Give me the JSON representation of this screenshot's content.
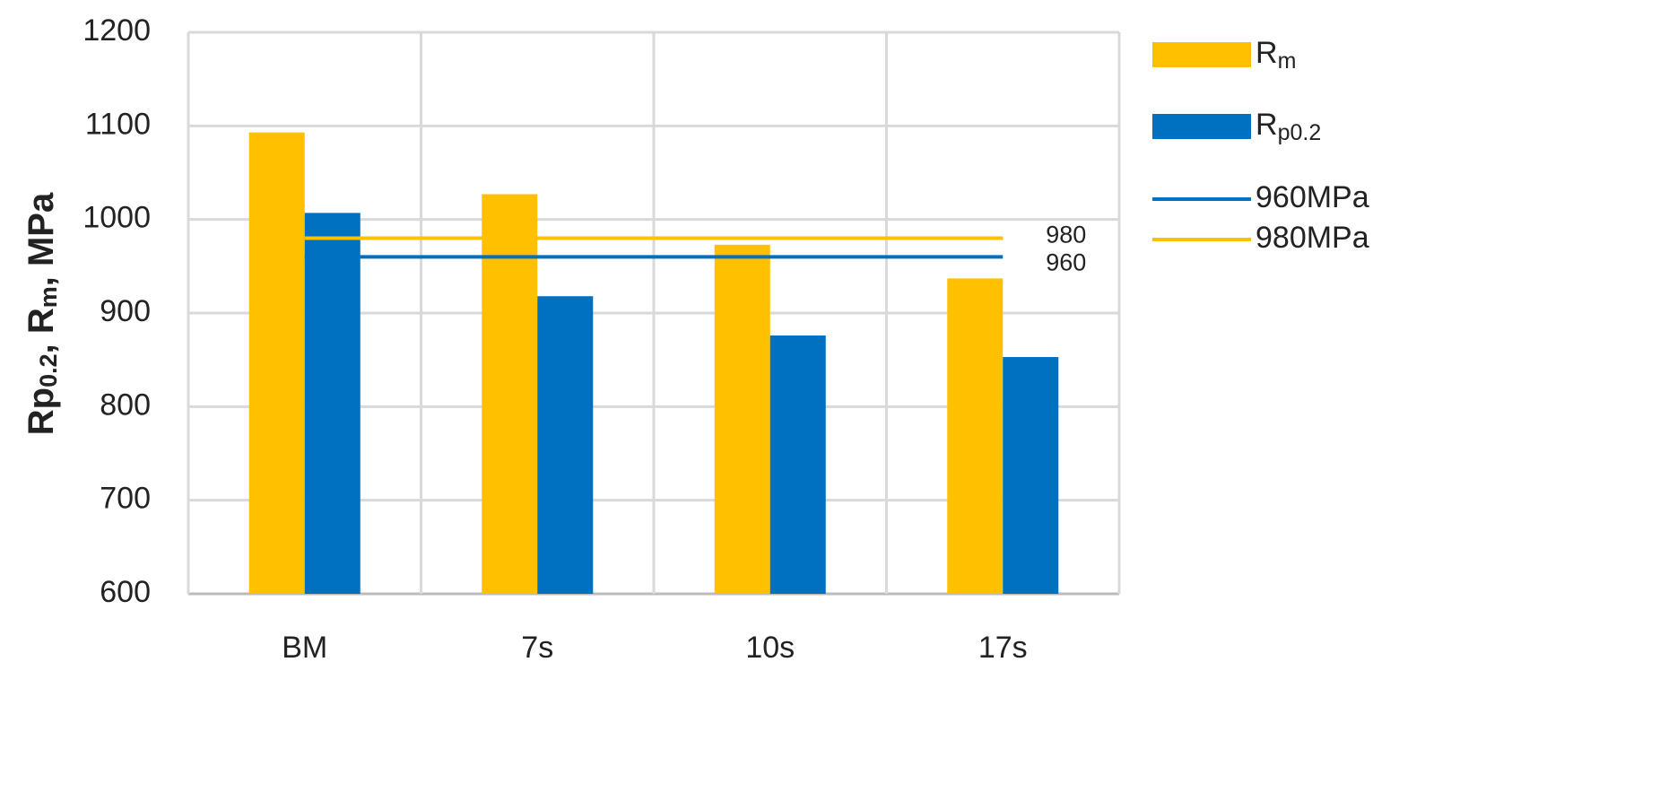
{
  "chart_data": {
    "type": "bar",
    "ylabel": [
      [
        "Rp",
        false
      ],
      [
        "0.2",
        true
      ],
      [
        ", R",
        false
      ],
      [
        "m",
        true
      ],
      [
        ", MPa",
        false
      ]
    ],
    "categories": [
      "BM",
      "7s",
      "10s",
      "17s"
    ],
    "series": [
      {
        "name": "R",
        "name_sub": "m",
        "color": "#ffc000",
        "values": [
          1093,
          1027,
          973,
          937
        ]
      },
      {
        "name": "R",
        "name_sub": "p0.2",
        "color": "#0070c0",
        "values": [
          1007,
          918,
          876,
          853
        ]
      }
    ],
    "reference_lines": [
      {
        "name": "960MPa",
        "color": "#0070c0",
        "value": 960
      },
      {
        "name": "980MPa",
        "color": "#ffc000",
        "value": 980
      }
    ],
    "ylim": [
      600,
      1200
    ],
    "yticks": [
      600,
      700,
      800,
      900,
      1000,
      1100,
      1200
    ],
    "grid": true,
    "legend": "right"
  }
}
